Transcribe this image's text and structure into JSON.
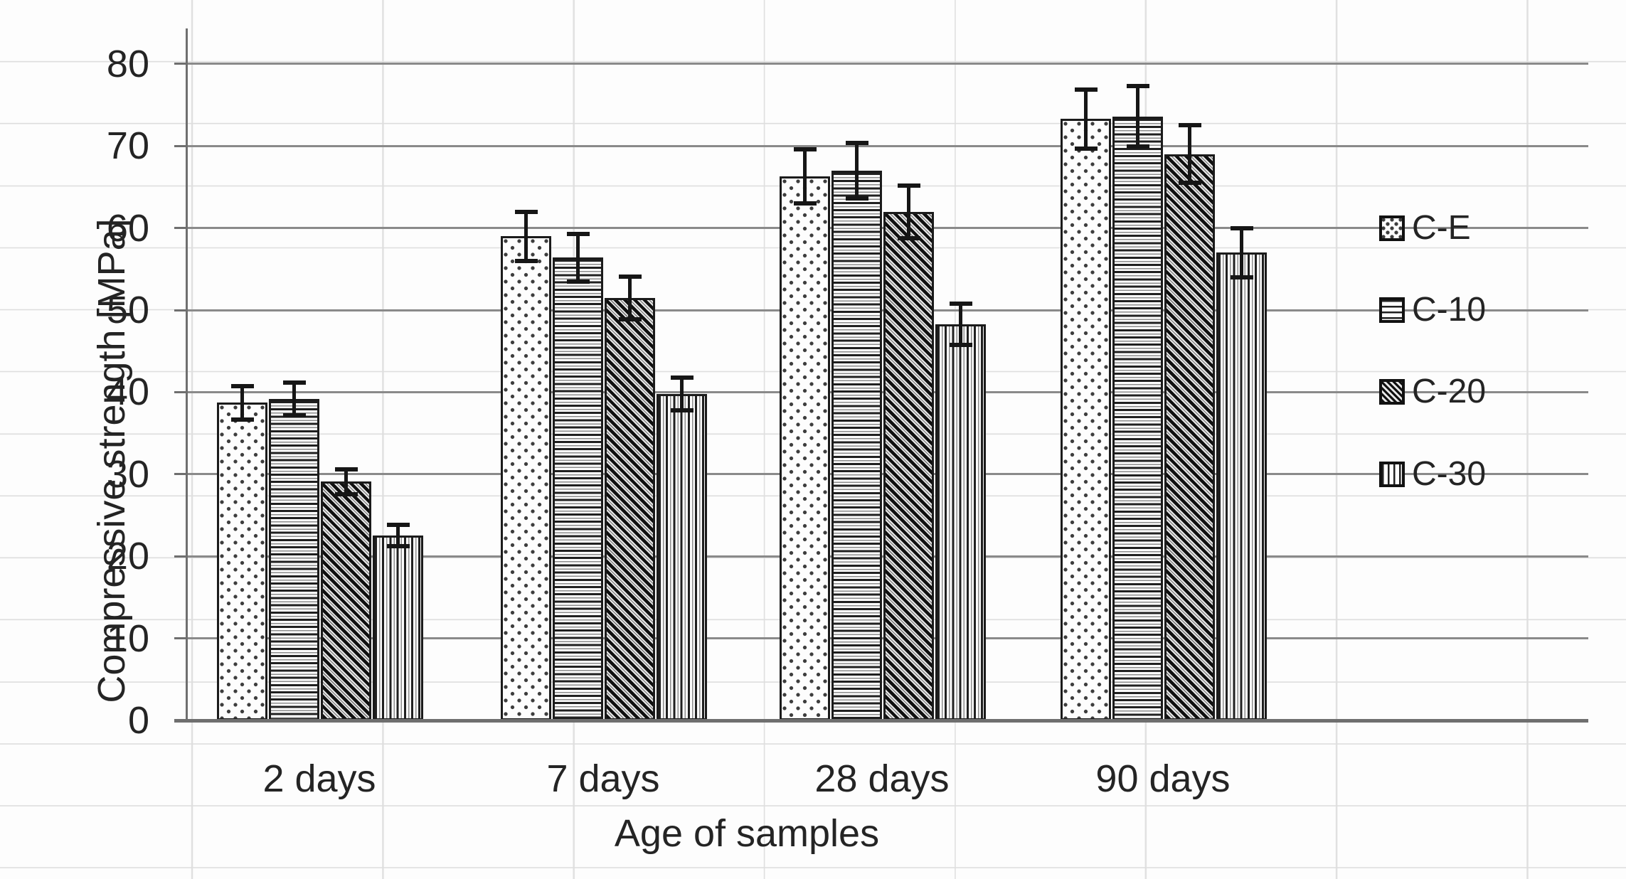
{
  "chart_data": {
    "type": "bar",
    "title": "",
    "xlabel": "Age of samples",
    "ylabel": "Compressive strength [MPa]",
    "categories": [
      "2 days",
      "7 days",
      "28 days",
      "90 days"
    ],
    "series": [
      {
        "name": "C-E",
        "pattern": "dots",
        "values": [
          38.7,
          59.0,
          66.3,
          73.3
        ],
        "errors": [
          2.0,
          3.0,
          3.3,
          3.6
        ]
      },
      {
        "name": "C-10",
        "pattern": "horizontal-lines",
        "values": [
          39.2,
          56.4,
          67.0,
          73.6
        ],
        "errors": [
          2.0,
          2.9,
          3.4,
          3.7
        ]
      },
      {
        "name": "C-20",
        "pattern": "diagonal-lines",
        "values": [
          29.1,
          51.5,
          62.0,
          69.0
        ],
        "errors": [
          1.5,
          2.6,
          3.2,
          3.5
        ]
      },
      {
        "name": "C-30",
        "pattern": "vertical-lines",
        "values": [
          22.5,
          39.8,
          48.3,
          57.0
        ],
        "errors": [
          1.3,
          2.0,
          2.5,
          3.0
        ]
      }
    ],
    "ylim": [
      0,
      80
    ],
    "ytick_step": 10,
    "yticks": [
      "0",
      "10",
      "20",
      "30",
      "40",
      "50",
      "60",
      "70",
      "80"
    ],
    "grid": true,
    "error_bars": true,
    "legend_position": "right",
    "legend_items": [
      "C-E",
      "C-10",
      "C-20",
      "C-30"
    ]
  },
  "colors": {
    "ink": "#1f1f1f",
    "bar_border": "#1b1b1b",
    "gridline": "#8a8a8a",
    "axis": "#6f6f6f",
    "faint_sheet_grid": "#dedede",
    "background": "#fdfdfd"
  }
}
